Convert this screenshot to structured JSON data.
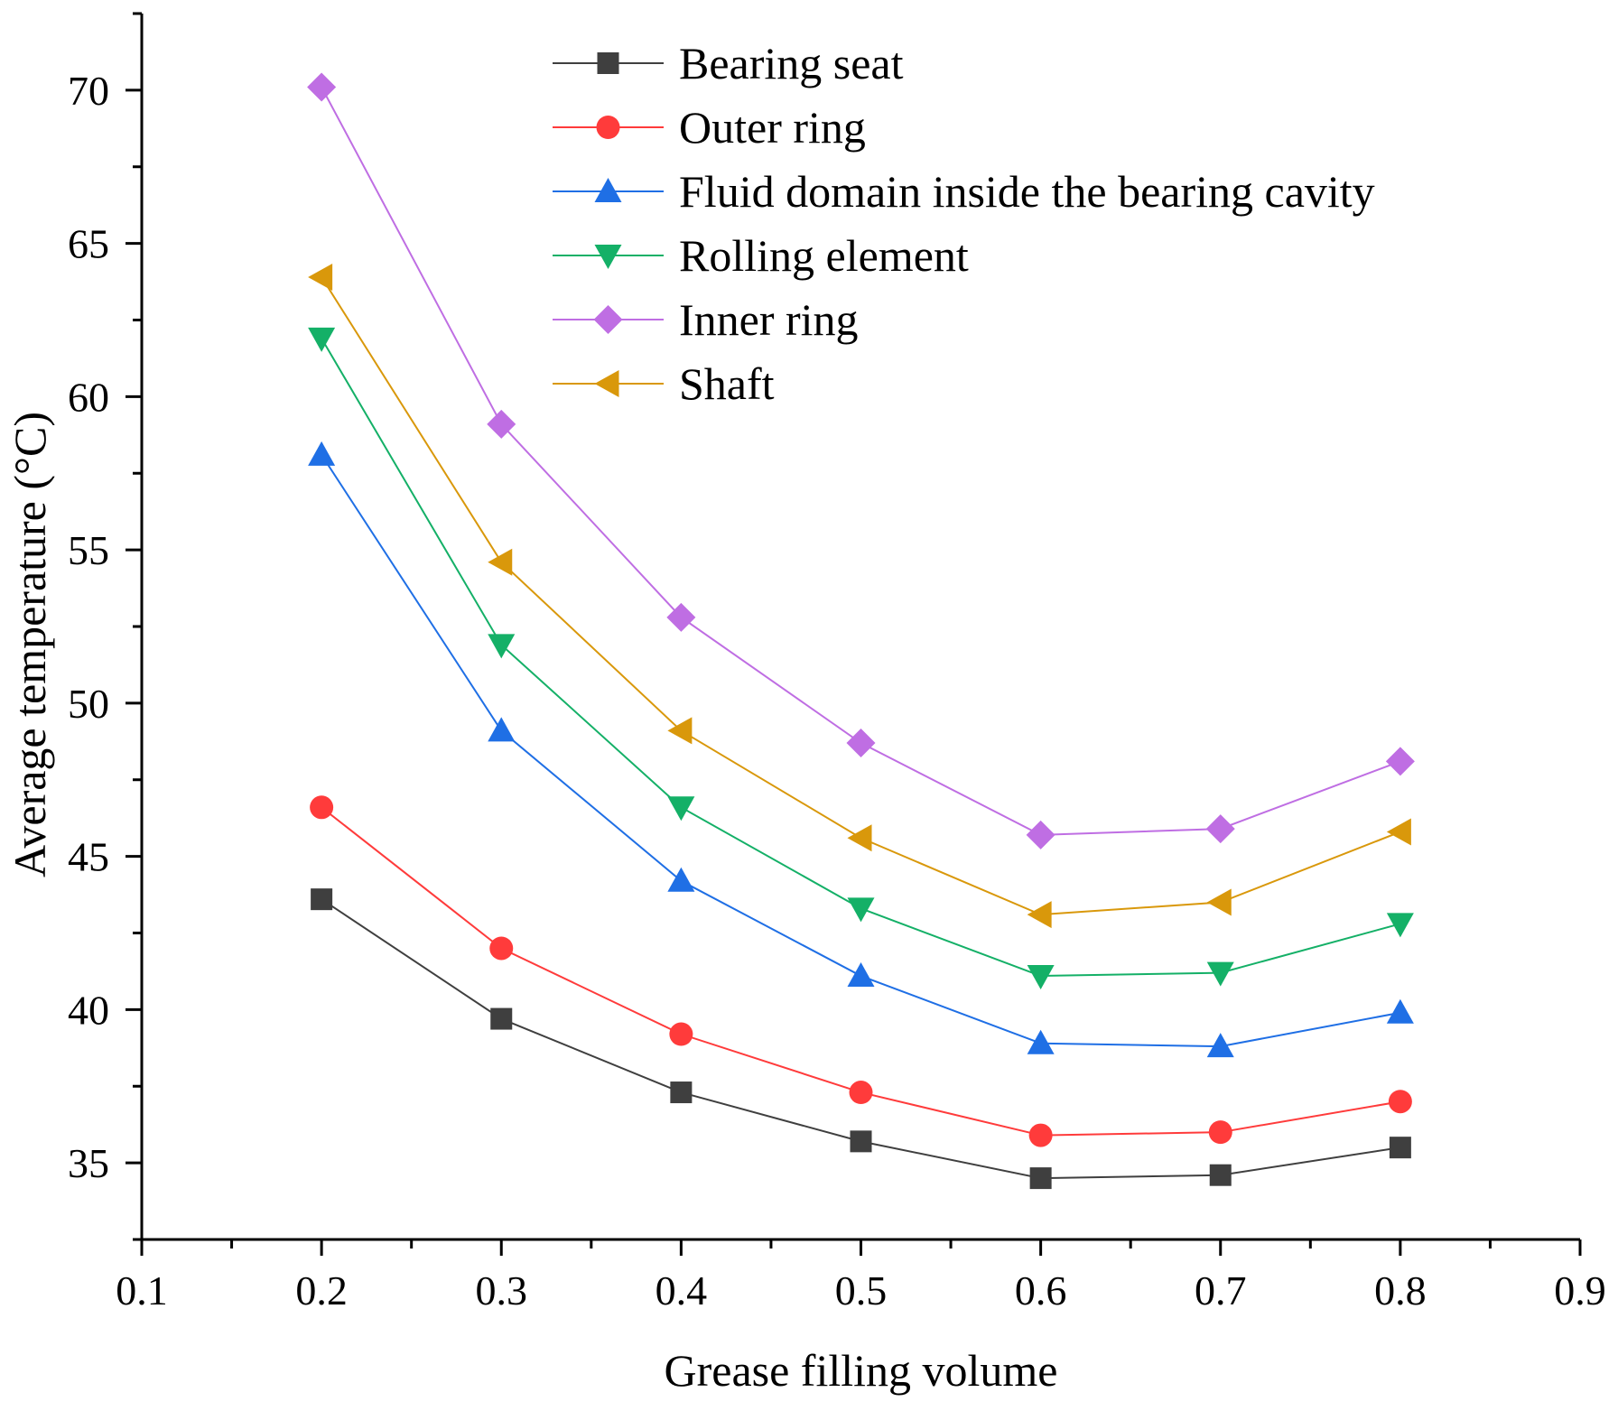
{
  "chart_data": {
    "type": "line",
    "title": "",
    "xlabel": "Grease filling volume",
    "ylabel": "Average temperature (°C)",
    "xlim": [
      0.1,
      0.9
    ],
    "ylim": [
      32.5,
      72.5
    ],
    "x": [
      0.2,
      0.3,
      0.4,
      0.5,
      0.6,
      0.7,
      0.8
    ],
    "xticks": [
      0.1,
      0.2,
      0.3,
      0.4,
      0.5,
      0.6,
      0.7,
      0.8,
      0.9
    ],
    "xtick_labels": [
      "0.1",
      "0.2",
      "0.3",
      "0.4",
      "0.5",
      "0.6",
      "0.7",
      "0.8",
      "0.9"
    ],
    "yticks": [
      35,
      40,
      45,
      50,
      55,
      60,
      65,
      70
    ],
    "ytick_labels": [
      "35",
      "40",
      "45",
      "50",
      "55",
      "60",
      "65",
      "70"
    ],
    "grid": false,
    "legend_position": "top-center",
    "series": [
      {
        "name": "Bearing seat",
        "color": "#3f3f3f",
        "marker": "square",
        "values": [
          43.6,
          39.7,
          37.3,
          35.7,
          34.5,
          34.6,
          35.5
        ]
      },
      {
        "name": "Outer ring",
        "color": "#ff3b3b",
        "marker": "circle",
        "values": [
          46.6,
          42.0,
          39.2,
          37.3,
          35.9,
          36.0,
          37.0
        ]
      },
      {
        "name": "Fluid domain inside the bearing cavity",
        "color": "#1f6fe5",
        "marker": "triangle-up",
        "values": [
          58.1,
          49.1,
          44.2,
          41.1,
          38.9,
          38.8,
          39.9
        ]
      },
      {
        "name": "Rolling element",
        "color": "#14b067",
        "marker": "triangle-down",
        "values": [
          61.9,
          51.9,
          46.6,
          43.3,
          41.1,
          41.2,
          42.8
        ]
      },
      {
        "name": "Inner ring",
        "color": "#bf6ee3",
        "marker": "diamond",
        "values": [
          70.1,
          59.1,
          52.8,
          48.7,
          45.7,
          45.9,
          48.1
        ]
      },
      {
        "name": "Shaft",
        "color": "#d9980b",
        "marker": "triangle-left",
        "values": [
          63.9,
          54.6,
          49.1,
          45.6,
          43.1,
          43.5,
          45.8
        ]
      }
    ]
  }
}
